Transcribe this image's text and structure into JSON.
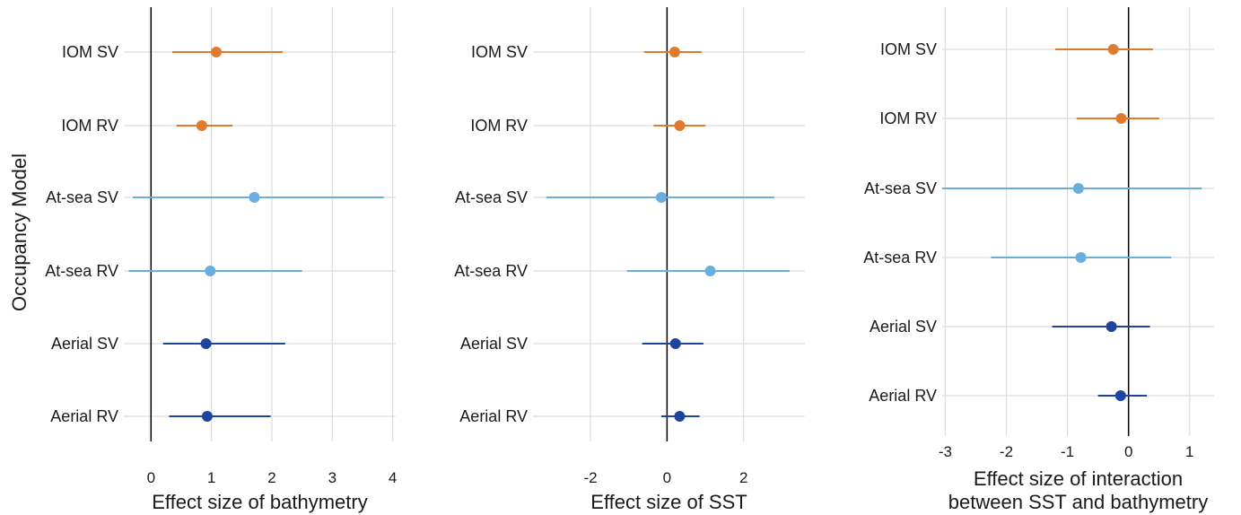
{
  "figure": {
    "ylabel": "Occupancy Model"
  },
  "colors": {
    "IOM": "#e07b2d",
    "At-sea": "#6aaee0",
    "Aerial": "#1f449c",
    "grid": "#dcdcdc",
    "zero_line": "#000000"
  },
  "categories": [
    "IOM SV",
    "IOM RV",
    "At-sea SV",
    "At-sea RV",
    "Aerial SV",
    "Aerial RV"
  ],
  "chart_data": [
    {
      "type": "scatter",
      "xlabel": "Effect size of bathymetry",
      "xlabel_lines": [
        "Effect size of bathymetry"
      ],
      "ylabel": "Occupancy Model",
      "xlim": [
        -0.45,
        4.05
      ],
      "xticks": [
        0,
        1,
        2,
        3,
        4
      ],
      "tick_labels": [
        "0",
        "1",
        "2",
        "3",
        "4"
      ],
      "grid": true,
      "categories": [
        "IOM SV",
        "IOM RV",
        "At-sea SV",
        "At-sea RV",
        "Aerial SV",
        "Aerial RV"
      ],
      "groups": [
        "IOM",
        "IOM",
        "At-sea",
        "At-sea",
        "Aerial",
        "Aerial"
      ],
      "estimate": [
        1.08,
        0.84,
        1.71,
        0.98,
        0.91,
        0.93
      ],
      "lower": [
        0.35,
        0.42,
        -0.3,
        -0.37,
        0.2,
        0.3
      ],
      "upper": [
        2.18,
        1.35,
        3.85,
        2.5,
        2.22,
        1.98
      ]
    },
    {
      "type": "scatter",
      "xlabel": "Effect size of SST",
      "xlabel_lines": [
        "Effect size of SST"
      ],
      "xlim": [
        -3.5,
        3.6
      ],
      "xticks": [
        -2,
        0,
        2
      ],
      "tick_labels": [
        "-2",
        "0",
        "2"
      ],
      "grid": true,
      "categories": [
        "IOM SV",
        "IOM RV",
        "At-sea SV",
        "At-sea RV",
        "Aerial SV",
        "Aerial RV"
      ],
      "groups": [
        "IOM",
        "IOM",
        "At-sea",
        "At-sea",
        "Aerial",
        "Aerial"
      ],
      "estimate": [
        0.2,
        0.33,
        -0.15,
        1.13,
        0.22,
        0.33
      ],
      "lower": [
        -0.6,
        -0.35,
        -3.15,
        -1.05,
        -0.65,
        -0.15
      ],
      "upper": [
        0.9,
        1.0,
        2.8,
        3.2,
        0.95,
        0.85
      ]
    },
    {
      "type": "scatter",
      "xlabel": "Effect size of interaction between SST and bathymetry",
      "xlabel_lines": [
        "Effect size of interaction",
        "between SST and bathymetry"
      ],
      "xlim": [
        -3.05,
        1.4
      ],
      "xticks": [
        -3,
        -2,
        -1,
        0,
        1
      ],
      "tick_labels": [
        "-3",
        "-2",
        "-1",
        "0",
        "1"
      ],
      "grid": true,
      "categories": [
        "IOM SV",
        "IOM RV",
        "At-sea SV",
        "At-sea RV",
        "Aerial SV",
        "Aerial RV"
      ],
      "groups": [
        "IOM",
        "IOM",
        "At-sea",
        "At-sea",
        "Aerial",
        "Aerial"
      ],
      "estimate": [
        -0.25,
        -0.12,
        -0.82,
        -0.78,
        -0.28,
        -0.13
      ],
      "lower": [
        -1.2,
        -0.85,
        -3.05,
        -2.25,
        -1.25,
        -0.5
      ],
      "upper": [
        0.4,
        0.5,
        1.2,
        0.7,
        0.35,
        0.3
      ]
    }
  ]
}
